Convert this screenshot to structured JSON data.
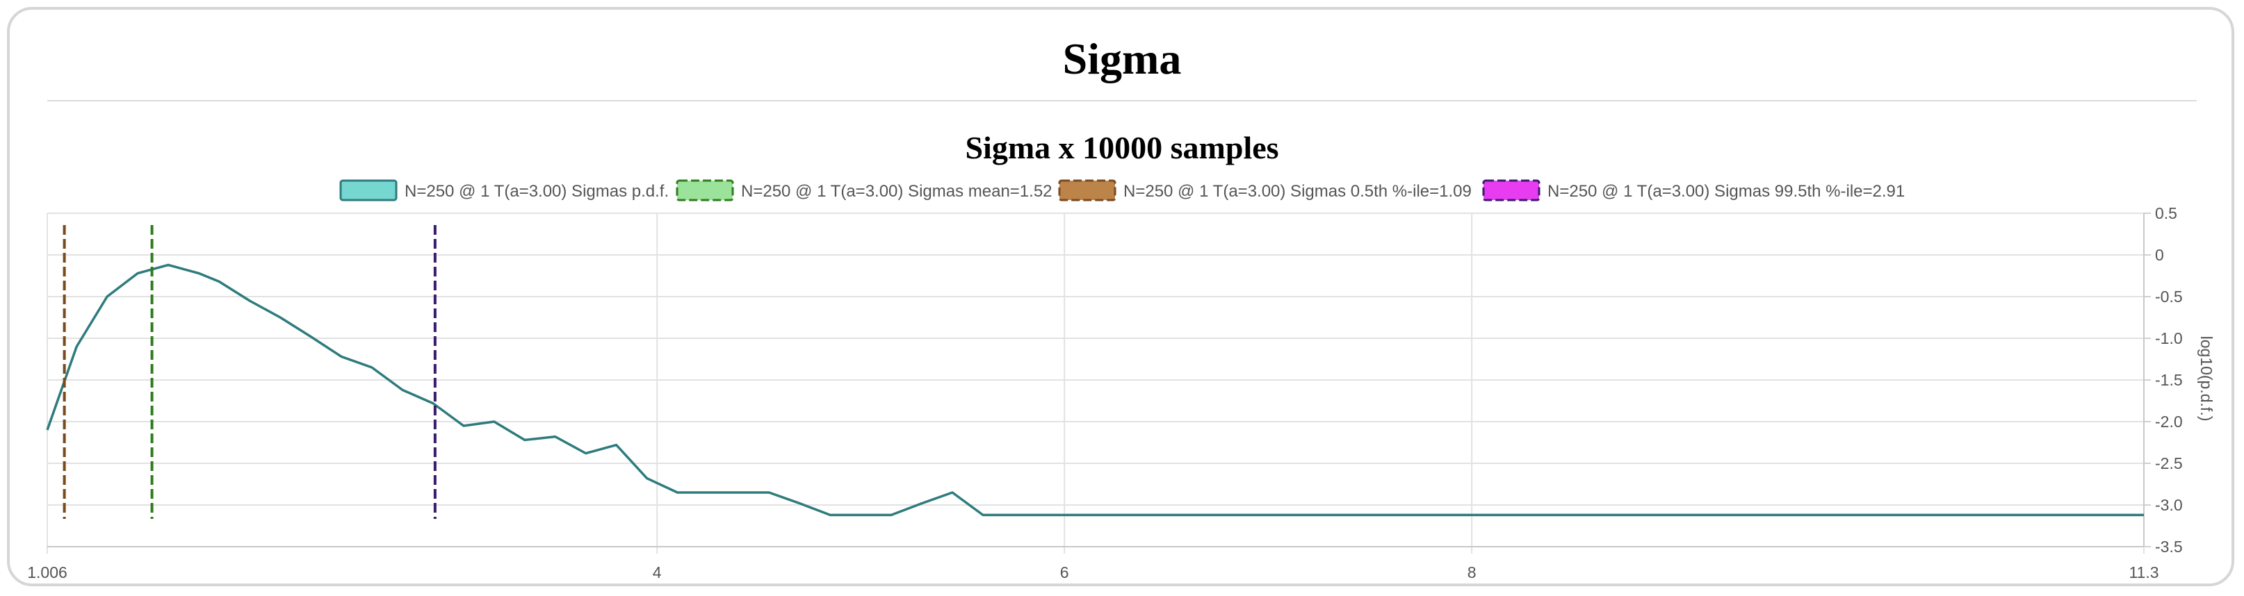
{
  "page": {
    "title": "Sigma"
  },
  "chart_data": {
    "type": "line",
    "title": "Sigma x 10000 samples",
    "xlabel": "",
    "ylabel": "log10(p.d.f.)",
    "xlim": [
      1.006,
      11.3
    ],
    "ylim": [
      -3.5,
      0.5
    ],
    "x_ticks": [
      "1.006",
      "4",
      "6",
      "8",
      "11.3"
    ],
    "y_ticks": [
      "0.5",
      "0",
      "-0.5",
      "-1.0",
      "-1.5",
      "-2.0",
      "-2.5",
      "-3.0",
      "-3.5"
    ],
    "grid": true,
    "legend_position": "top",
    "series": [
      {
        "name": "N=250 @ 1 T(a=3.00) Sigmas p.d.f.",
        "style": "solid",
        "color": "#2e7b7d",
        "fill": "#76d7d1",
        "points": [
          [
            1.006,
            -2.1
          ],
          [
            1.15,
            -1.1
          ],
          [
            1.3,
            -0.5
          ],
          [
            1.45,
            -0.22
          ],
          [
            1.6,
            -0.12
          ],
          [
            1.75,
            -0.22
          ],
          [
            1.85,
            -0.32
          ],
          [
            2.0,
            -0.55
          ],
          [
            2.15,
            -0.75
          ],
          [
            2.3,
            -0.98
          ],
          [
            2.45,
            -1.22
          ],
          [
            2.6,
            -1.35
          ],
          [
            2.75,
            -1.62
          ],
          [
            2.9,
            -1.78
          ],
          [
            3.05,
            -2.05
          ],
          [
            3.2,
            -2.0
          ],
          [
            3.35,
            -2.22
          ],
          [
            3.5,
            -2.18
          ],
          [
            3.65,
            -2.38
          ],
          [
            3.8,
            -2.28
          ],
          [
            3.95,
            -2.68
          ],
          [
            4.1,
            -2.85
          ],
          [
            4.25,
            -2.85
          ],
          [
            4.4,
            -2.85
          ],
          [
            4.55,
            -2.85
          ],
          [
            4.7,
            -2.98
          ],
          [
            4.85,
            -3.12
          ],
          [
            5.0,
            -3.12
          ],
          [
            5.15,
            -3.12
          ],
          [
            5.3,
            -2.98
          ],
          [
            5.45,
            -2.85
          ],
          [
            5.6,
            -3.12
          ],
          [
            11.3,
            -3.12
          ]
        ]
      },
      {
        "name": "N=250 @ 1 T(a=3.00) Sigmas mean=1.52",
        "style": "dashed",
        "color": "#2e7d1e",
        "fill": "#9be39a",
        "x": 1.52
      },
      {
        "name": "N=250 @ 1 T(a=3.00) Sigmas 0.5th %-ile=1.09",
        "style": "dashed",
        "color": "#7a4a1e",
        "fill": "#bc8449",
        "x": 1.09
      },
      {
        "name": "N=250 @ 1 T(a=3.00) Sigmas 99.5th %-ile=2.91",
        "style": "dashed",
        "color": "#3a1a6e",
        "fill": "#e83cf0",
        "x": 2.91
      }
    ]
  }
}
